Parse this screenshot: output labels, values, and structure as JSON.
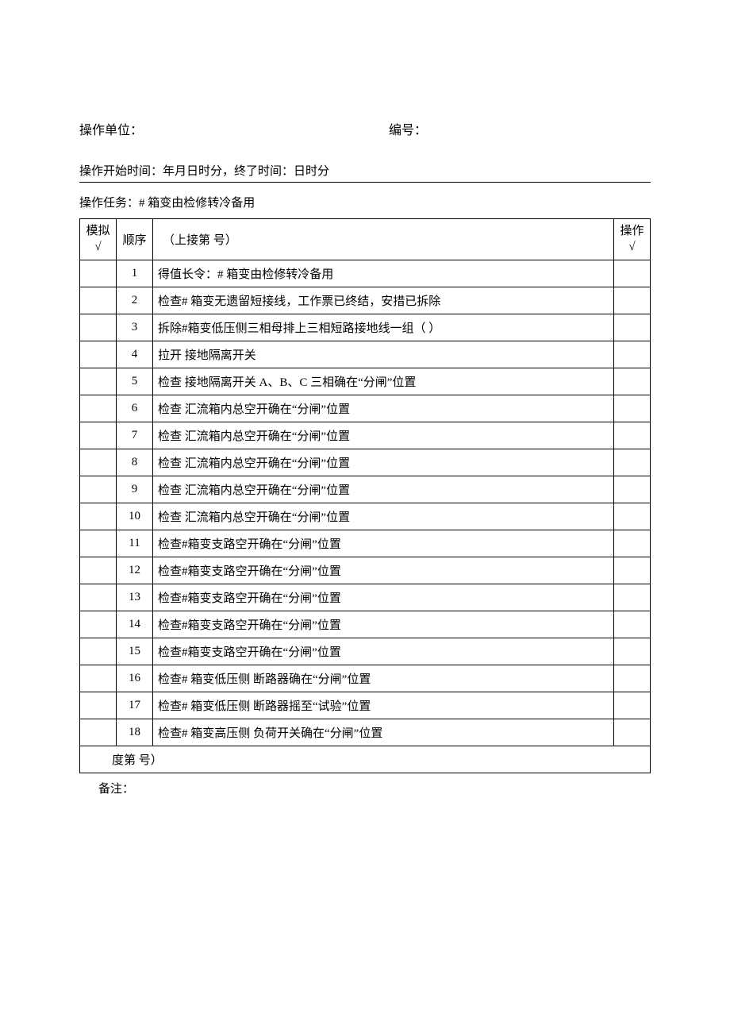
{
  "header": {
    "unit_label": "操作单位：",
    "number_label": "编号："
  },
  "time_line": "操作开始时间：年月日时分，终了时间：日时分",
  "task_line": "操作任务：#          箱变由检修转冷备用",
  "table": {
    "headers": {
      "sim": "模拟\n√",
      "seq": "顺序",
      "content": "（上接第          号）",
      "op": "操作\n√"
    },
    "rows": [
      {
        "seq": "1",
        "content": "得值长令：#          箱变由检修转冷备用"
      },
      {
        "seq": "2",
        "content": "检查#          箱变无遗留短接线，工作票已终结，安措已拆除"
      },
      {
        "seq": "3",
        "content": "拆除#箱变低压侧三相母排上三相短路接地线一组（              ）"
      },
      {
        "seq": "4",
        "content": "拉开                    接地隔离开关"
      },
      {
        "seq": "5",
        "content": "检查                    接地隔离开关 A、B、C 三相确在“分闸”位置"
      },
      {
        "seq": "6",
        "content": "检查                    汇流箱内总空开确在“分闸”位置"
      },
      {
        "seq": "7",
        "content": "检查                    汇流箱内总空开确在“分闸”位置"
      },
      {
        "seq": "8",
        "content": "检查                    汇流箱内总空开确在“分闸”位置"
      },
      {
        "seq": "9",
        "content": "检查                    汇流箱内总空开确在“分闸”位置"
      },
      {
        "seq": "10",
        "content": "检查                    汇流箱内总空开确在“分闸”位置"
      },
      {
        "seq": "11",
        "content": "检查#箱变支路空开确在“分闸”位置"
      },
      {
        "seq": "12",
        "content": "检查#箱变支路空开确在“分闸”位置"
      },
      {
        "seq": "13",
        "content": "检查#箱变支路空开确在“分闸”位置"
      },
      {
        "seq": "14",
        "content": "检查#箱变支路空开确在“分闸”位置"
      },
      {
        "seq": "15",
        "content": "检查#箱变支路空开确在“分闸”位置"
      },
      {
        "seq": "16",
        "content": "检查#         箱变低压侧          断路器确在“分闸”位置"
      },
      {
        "seq": "17",
        "content": "检查#         箱变低压侧          断路器摇至“试验”位置"
      },
      {
        "seq": "18",
        "content": "检查#         箱变高压侧          负荷开关确在“分闸”位置"
      }
    ],
    "footer_row": "度第          号）"
  },
  "footer_note": "备注："
}
